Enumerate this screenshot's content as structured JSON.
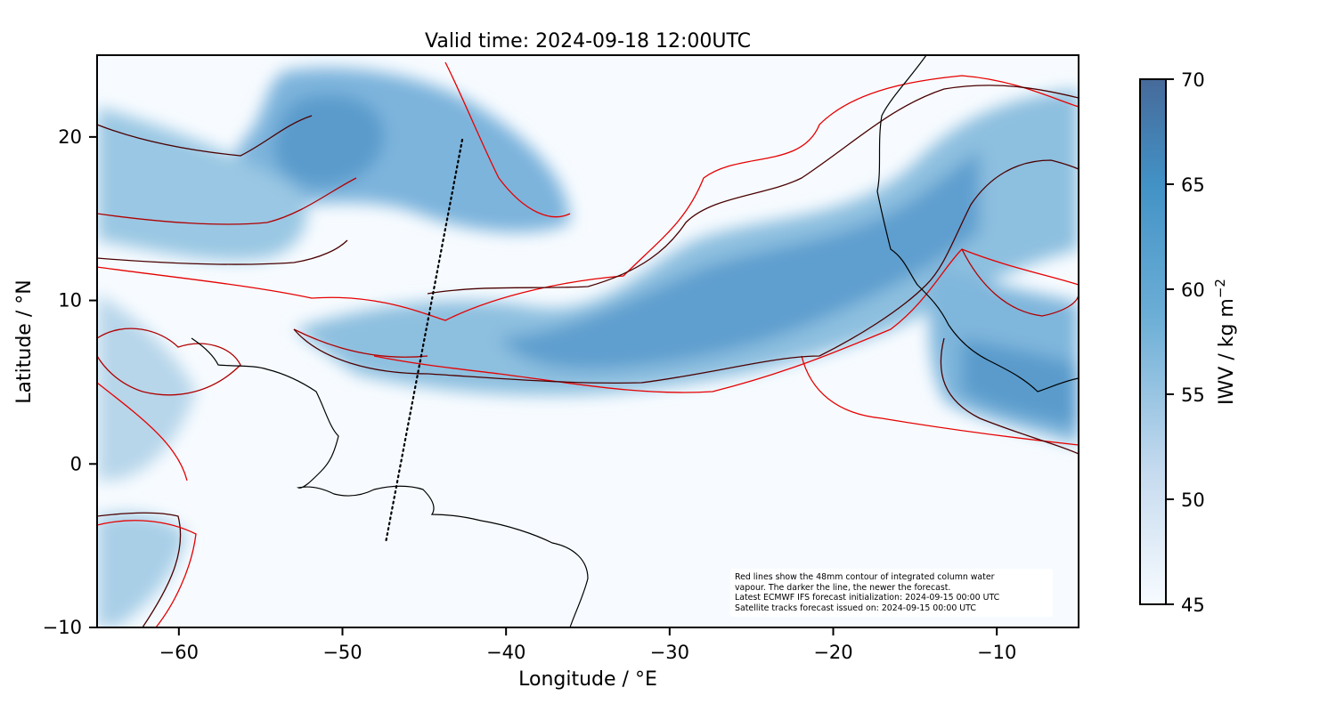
{
  "title": "Valid time: 2024-09-18 12:00UTC",
  "xlabel": "Longitude / °E",
  "ylabel": "Latitude / °N",
  "x_ticks": [
    "−60",
    "−50",
    "−40",
    "−30",
    "−20",
    "−10"
  ],
  "y_ticks": [
    "20",
    "10",
    "0",
    "−10"
  ],
  "colorbar": {
    "label": "IWV / kg m",
    "label_superscript": "−2",
    "ticks": [
      "70",
      "65",
      "60",
      "55",
      "50",
      "45"
    ],
    "range": [
      45,
      70
    ],
    "colors": [
      "#f7fbff",
      "#c6dbef",
      "#6baed6",
      "#4292c6",
      "#466a9a"
    ]
  },
  "note": [
    "Red lines show the 48mm contour of integrated column water",
    "vapour. The darker the line, the newer the forecast.",
    "Latest ECMWF IFS forecast initialization: 2024-09-15 00:00 UTC",
    "Satellite tracks forecast issued on: 2024-09-15 00:00 UTC"
  ],
  "chart_data": {
    "type": "heatmap",
    "title": "Valid time: 2024-09-18 12:00UTC",
    "xlabel": "Longitude / °E",
    "ylabel": "Latitude / °N",
    "xlim": [
      -65,
      -5
    ],
    "ylim": [
      -10,
      25
    ],
    "x_tick_values": [
      -60,
      -50,
      -40,
      -30,
      -20,
      -10
    ],
    "y_tick_values": [
      -10,
      0,
      10,
      20
    ],
    "field": "IWV (kg m^-2)",
    "color_range": [
      45,
      70
    ],
    "contour_value_mm": 48,
    "satellite_track": [
      [
        -42.6,
        19.8
      ],
      [
        -47.3,
        -4.9
      ]
    ],
    "contour_colors": [
      "#4a0000",
      "#7a0000",
      "#b00000",
      "#e60000"
    ]
  }
}
